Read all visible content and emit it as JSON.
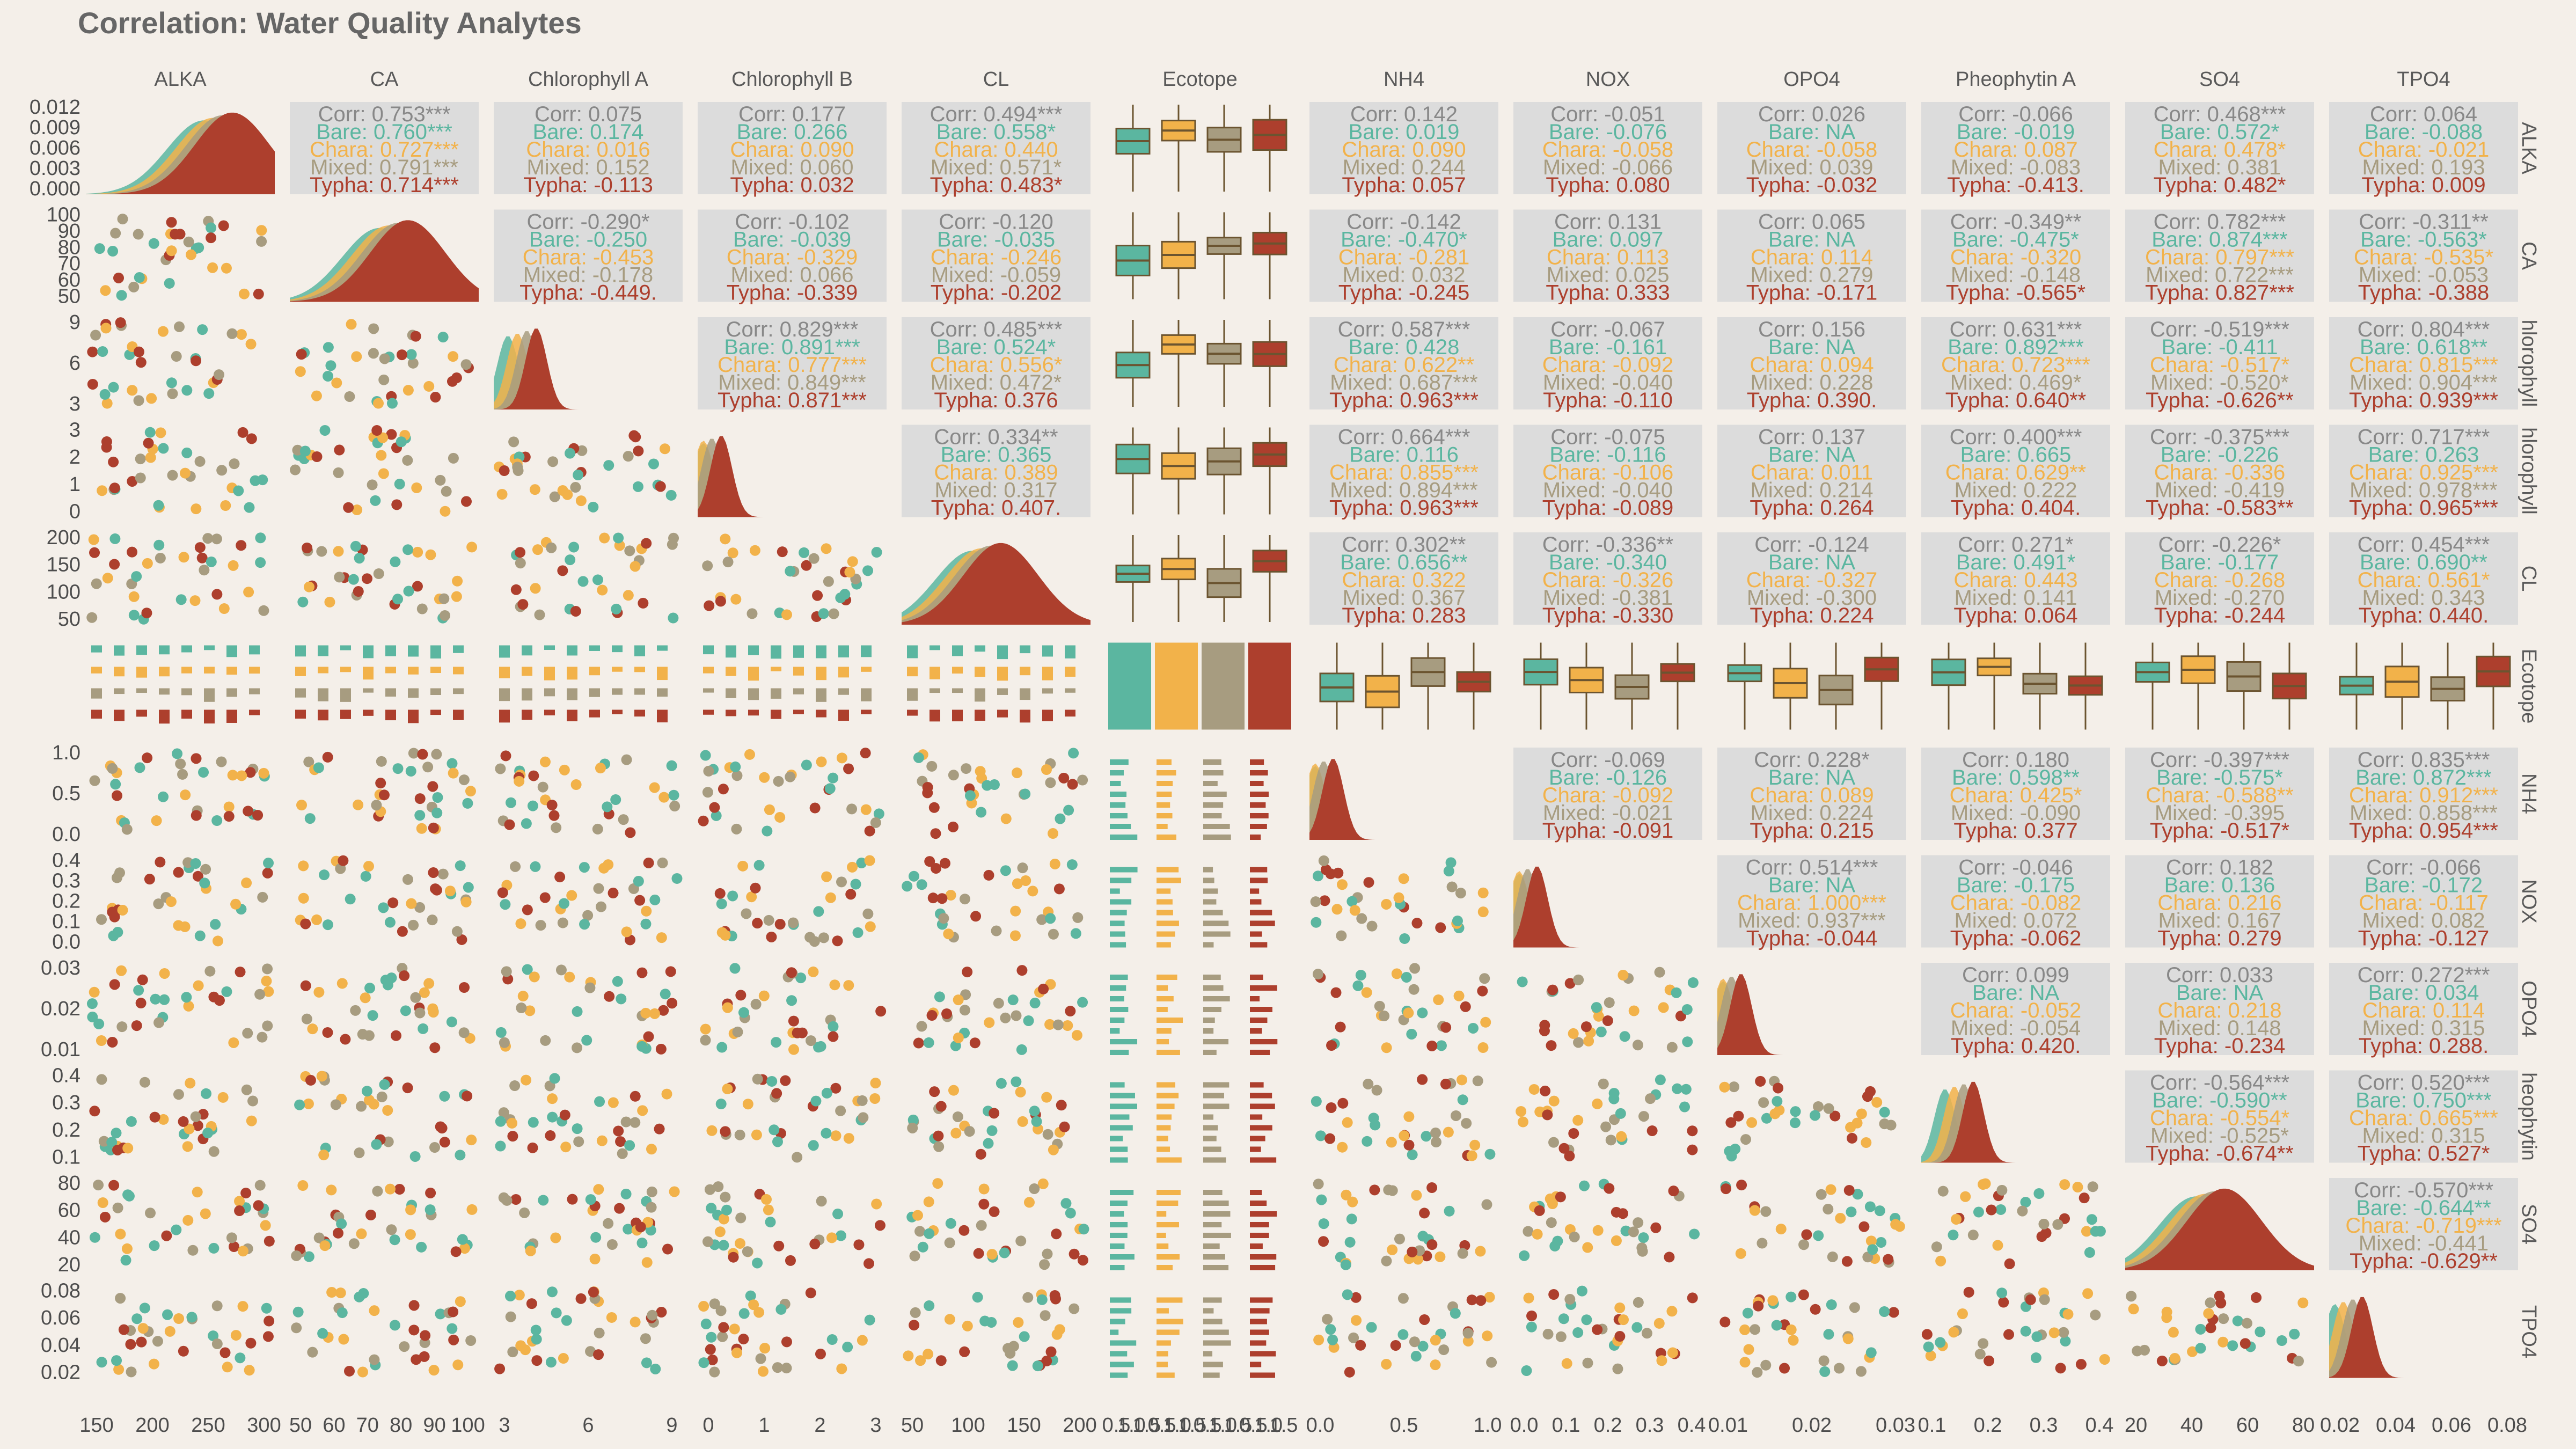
{
  "title": "Correlation: Water Quality Analytes",
  "colors": {
    "Bare": "#5bb6a0",
    "Chara": "#f2b24a",
    "Mixed": "#a79c80",
    "Typha": "#ad3f2d",
    "overall": "#888888",
    "box_line": "#6b5430"
  },
  "chart_data": {
    "type": "scatter",
    "variables": [
      "ALKA",
      "CA",
      "Chlorophyll A",
      "Chlorophyll B",
      "CL",
      "Ecotope",
      "NH4",
      "NOX",
      "OPO4",
      "Pheophytin A",
      "SO4",
      "TPO4"
    ],
    "column_strip_labels": [
      "ALKA",
      "CA",
      "Chlorophyll A",
      "Chlorophyll B",
      "CL",
      "Ecotope",
      "NH4",
      "NOX",
      "OPO4",
      "Pheophytin A",
      "SO4",
      "TPO4"
    ],
    "row_strip_labels": [
      "ALKA",
      "CA",
      "hlorophyll",
      "hlorophyll",
      "CL",
      "Ecotope",
      "NH4",
      "NOX",
      "OPO4",
      "heophytin",
      "SO4",
      "TPO4"
    ],
    "groups": [
      "Bare",
      "Chara",
      "Mixed",
      "Typha"
    ],
    "axis_ticks": {
      "x": [
        [
          "150",
          "200",
          "250",
          "300"
        ],
        [
          "50",
          "60",
          "70",
          "80",
          "90",
          "100"
        ],
        [
          "3",
          "6",
          "9"
        ],
        [
          "0",
          "1",
          "2",
          "3"
        ],
        [
          "50",
          "100",
          "150",
          "200"
        ],
        [
          "0.5",
          "1.0",
          "1.5",
          "0.5",
          "1.0",
          "1.5",
          "0.5",
          "1.0",
          "1.5",
          "0.5",
          "1.0",
          "1.5"
        ],
        [
          "0.0",
          "0.5",
          "1.0"
        ],
        [
          "0.0",
          "0.1",
          "0.2",
          "0.3",
          "0.4"
        ],
        [
          "0.01",
          "0.02",
          "0.03"
        ],
        [
          "0.1",
          "0.2",
          "0.3",
          "0.4"
        ],
        [
          "20",
          "40",
          "60",
          "80"
        ],
        [
          "0.02",
          "0.04",
          "0.06",
          "0.08"
        ]
      ],
      "y": [
        [
          "0.000",
          "0.003",
          "0.006",
          "0.009",
          "0.012"
        ],
        [
          "50",
          "60",
          "70",
          "80",
          "90",
          "100"
        ],
        [
          "3",
          "6",
          "9"
        ],
        [
          "0",
          "1",
          "2",
          "3"
        ],
        [
          "50",
          "100",
          "150",
          "200"
        ],
        [],
        [
          "0.0",
          "0.5",
          "1.0"
        ],
        [
          "0.0",
          "0.1",
          "0.2",
          "0.3",
          "0.4"
        ],
        [
          "0.01",
          "0.02",
          "0.03"
        ],
        [
          "0.1",
          "0.2",
          "0.3",
          "0.4"
        ],
        [
          "20",
          "40",
          "60",
          "80"
        ],
        [
          "0.02",
          "0.04",
          "0.06",
          "0.08"
        ]
      ]
    },
    "correlations": [
      {
        "row": 0,
        "col": 1,
        "lines": [
          "Corr: 0.753***",
          "Bare: 0.760***",
          "Chara: 0.727***",
          "Mixed: 0.791***",
          "Typha: 0.714***"
        ]
      },
      {
        "row": 0,
        "col": 2,
        "lines": [
          "Corr: 0.075",
          "Bare: 0.174",
          "Chara: 0.016",
          "Mixed: 0.152",
          "Typha: -0.113"
        ]
      },
      {
        "row": 0,
        "col": 3,
        "lines": [
          "Corr: 0.177",
          "Bare: 0.266",
          "Chara: 0.090",
          "Mixed: 0.060",
          "Typha: 0.032"
        ]
      },
      {
        "row": 0,
        "col": 4,
        "lines": [
          "Corr: 0.494***",
          "Bare: 0.558*",
          "Chara: 0.440",
          "Mixed: 0.571*",
          "Typha: 0.483*"
        ]
      },
      {
        "row": 0,
        "col": 6,
        "lines": [
          "Corr: 0.142",
          "Bare: 0.019",
          "Chara: 0.090",
          "Mixed: 0.244",
          "Typha: 0.057"
        ]
      },
      {
        "row": 0,
        "col": 7,
        "lines": [
          "Corr: -0.051",
          "Bare: -0.076",
          "Chara: -0.058",
          "Mixed: -0.066",
          "Typha: 0.080"
        ]
      },
      {
        "row": 0,
        "col": 8,
        "lines": [
          "Corr: 0.026",
          "Bare: NA",
          "Chara: -0.058",
          "Mixed: 0.039",
          "Typha: -0.032"
        ]
      },
      {
        "row": 0,
        "col": 9,
        "lines": [
          "Corr: -0.066",
          "Bare: -0.019",
          "Chara: 0.087",
          "Mixed: -0.083",
          "Typha: -0.413."
        ]
      },
      {
        "row": 0,
        "col": 10,
        "lines": [
          "Corr: 0.468***",
          "Bare: 0.572*",
          "Chara: 0.478*",
          "Mixed: 0.381",
          "Typha: 0.482*"
        ]
      },
      {
        "row": 0,
        "col": 11,
        "lines": [
          "Corr: 0.064",
          "Bare: -0.088",
          "Chara: -0.021",
          "Mixed: 0.193",
          "Typha: 0.009"
        ]
      },
      {
        "row": 1,
        "col": 2,
        "lines": [
          "Corr: -0.290*",
          "Bare: -0.250",
          "Chara: -0.453",
          "Mixed: -0.178",
          "Typha: -0.449."
        ]
      },
      {
        "row": 1,
        "col": 3,
        "lines": [
          "Corr: -0.102",
          "Bare: -0.039",
          "Chara: -0.329",
          "Mixed: 0.066",
          "Typha: -0.339"
        ]
      },
      {
        "row": 1,
        "col": 4,
        "lines": [
          "Corr: -0.120",
          "Bare: -0.035",
          "Chara: -0.246",
          "Mixed: -0.059",
          "Typha: -0.202"
        ]
      },
      {
        "row": 1,
        "col": 6,
        "lines": [
          "Corr: -0.142",
          "Bare: -0.470*",
          "Chara: -0.281",
          "Mixed: 0.032",
          "Typha: -0.245"
        ]
      },
      {
        "row": 1,
        "col": 7,
        "lines": [
          "Corr: 0.131",
          "Bare: 0.097",
          "Chara: 0.113",
          "Mixed: 0.025",
          "Typha: 0.333"
        ]
      },
      {
        "row": 1,
        "col": 8,
        "lines": [
          "Corr: 0.065",
          "Bare: NA",
          "Chara: 0.114",
          "Mixed: 0.279",
          "Typha: -0.171"
        ]
      },
      {
        "row": 1,
        "col": 9,
        "lines": [
          "Corr: -0.349**",
          "Bare: -0.475*",
          "Chara: -0.320",
          "Mixed: -0.148",
          "Typha: -0.565*"
        ]
      },
      {
        "row": 1,
        "col": 10,
        "lines": [
          "Corr: 0.782***",
          "Bare: 0.874***",
          "Chara: 0.797***",
          "Mixed: 0.722***",
          "Typha: 0.827***"
        ]
      },
      {
        "row": 1,
        "col": 11,
        "lines": [
          "Corr: -0.311**",
          "Bare: -0.563*",
          "Chara: -0.535*",
          "Mixed: -0.053",
          "Typha: -0.388"
        ]
      },
      {
        "row": 2,
        "col": 3,
        "lines": [
          "Corr: 0.829***",
          "Bare: 0.891***",
          "Chara: 0.777***",
          "Mixed: 0.849***",
          "Typha: 0.871***"
        ]
      },
      {
        "row": 2,
        "col": 4,
        "lines": [
          "Corr: 0.485***",
          "Bare: 0.524*",
          "Chara: 0.556*",
          "Mixed: 0.472*",
          "Typha: 0.376"
        ]
      },
      {
        "row": 2,
        "col": 6,
        "lines": [
          "Corr: 0.587***",
          "Bare: 0.428",
          "Chara: 0.622**",
          "Mixed: 0.687***",
          "Typha: 0.963***"
        ]
      },
      {
        "row": 2,
        "col": 7,
        "lines": [
          "Corr: -0.067",
          "Bare: -0.161",
          "Chara: -0.092",
          "Mixed: -0.040",
          "Typha: -0.110"
        ]
      },
      {
        "row": 2,
        "col": 8,
        "lines": [
          "Corr: 0.156",
          "Bare: NA",
          "Chara: 0.094",
          "Mixed: 0.228",
          "Typha: 0.390."
        ]
      },
      {
        "row": 2,
        "col": 9,
        "lines": [
          "Corr: 0.631***",
          "Bare: 0.892***",
          "Chara: 0.723***",
          "Mixed: 0.469*",
          "Typha: 0.640**"
        ]
      },
      {
        "row": 2,
        "col": 10,
        "lines": [
          "Corr: -0.519***",
          "Bare: -0.411",
          "Chara: -0.517*",
          "Mixed: -0.520*",
          "Typha: -0.626**"
        ]
      },
      {
        "row": 2,
        "col": 11,
        "lines": [
          "Corr: 0.804***",
          "Bare: 0.618**",
          "Chara: 0.815***",
          "Mixed: 0.904***",
          "Typha: 0.939***"
        ]
      },
      {
        "row": 3,
        "col": 4,
        "lines": [
          "Corr: 0.334**",
          "Bare: 0.365",
          "Chara: 0.389",
          "Mixed: 0.317",
          "Typha: 0.407."
        ]
      },
      {
        "row": 3,
        "col": 6,
        "lines": [
          "Corr: 0.664***",
          "Bare: 0.116",
          "Chara: 0.855***",
          "Mixed: 0.894***",
          "Typha: 0.963***"
        ]
      },
      {
        "row": 3,
        "col": 7,
        "lines": [
          "Corr: -0.075",
          "Bare: -0.116",
          "Chara: -0.106",
          "Mixed: -0.040",
          "Typha: -0.089"
        ]
      },
      {
        "row": 3,
        "col": 8,
        "lines": [
          "Corr: 0.137",
          "Bare: NA",
          "Chara: 0.011",
          "Mixed: 0.214",
          "Typha: 0.264"
        ]
      },
      {
        "row": 3,
        "col": 9,
        "lines": [
          "Corr: 0.400***",
          "Bare: 0.665",
          "Chara: 0.629**",
          "Mixed: 0.222",
          "Typha: 0.404."
        ]
      },
      {
        "row": 3,
        "col": 10,
        "lines": [
          "Corr: -0.375***",
          "Bare: -0.226",
          "Chara: -0.336",
          "Mixed: -0.419",
          "Typha: -0.583**"
        ]
      },
      {
        "row": 3,
        "col": 11,
        "lines": [
          "Corr: 0.717***",
          "Bare: 0.263",
          "Chara: 0.925***",
          "Mixed: 0.978***",
          "Typha: 0.965***"
        ]
      },
      {
        "row": 4,
        "col": 6,
        "lines": [
          "Corr: 0.302**",
          "Bare: 0.656**",
          "Chara: 0.322",
          "Mixed: 0.367",
          "Typha: 0.283"
        ]
      },
      {
        "row": 4,
        "col": 7,
        "lines": [
          "Corr: -0.336**",
          "Bare: -0.340",
          "Chara: -0.326",
          "Mixed: -0.381",
          "Typha: -0.330"
        ]
      },
      {
        "row": 4,
        "col": 8,
        "lines": [
          "Corr: -0.124",
          "Bare: NA",
          "Chara: -0.327",
          "Mixed: -0.300",
          "Typha: 0.224"
        ]
      },
      {
        "row": 4,
        "col": 9,
        "lines": [
          "Corr: 0.271*",
          "Bare: 0.491*",
          "Chara: 0.443",
          "Mixed: 0.141",
          "Typha: 0.064"
        ]
      },
      {
        "row": 4,
        "col": 10,
        "lines": [
          "Corr: -0.226*",
          "Bare: -0.177",
          "Chara: -0.268",
          "Mixed: -0.270",
          "Typha: -0.244"
        ]
      },
      {
        "row": 4,
        "col": 11,
        "lines": [
          "Corr: 0.454***",
          "Bare: 0.690**",
          "Chara: 0.561*",
          "Mixed: 0.343",
          "Typha: 0.440."
        ]
      },
      {
        "row": 6,
        "col": 7,
        "lines": [
          "Corr: -0.069",
          "Bare: -0.126",
          "Chara: -0.092",
          "Mixed: -0.021",
          "Typha: -0.091"
        ]
      },
      {
        "row": 6,
        "col": 8,
        "lines": [
          "Corr: 0.228*",
          "Bare: NA",
          "Chara: 0.089",
          "Mixed: 0.224",
          "Typha: 0.215"
        ]
      },
      {
        "row": 6,
        "col": 9,
        "lines": [
          "Corr: 0.180",
          "Bare: 0.598**",
          "Chara: 0.425*",
          "Mixed: -0.090",
          "Typha: 0.377"
        ]
      },
      {
        "row": 6,
        "col": 10,
        "lines": [
          "Corr: -0.397***",
          "Bare: -0.575*",
          "Chara: -0.588**",
          "Mixed: -0.395",
          "Typha: -0.517*"
        ]
      },
      {
        "row": 6,
        "col": 11,
        "lines": [
          "Corr: 0.835***",
          "Bare: 0.872***",
          "Chara: 0.912***",
          "Mixed: 0.858***",
          "Typha: 0.954***"
        ]
      },
      {
        "row": 7,
        "col": 8,
        "lines": [
          "Corr: 0.514***",
          "Bare: NA",
          "Chara: 1.000***",
          "Mixed: 0.937***",
          "Typha: -0.044"
        ]
      },
      {
        "row": 7,
        "col": 9,
        "lines": [
          "Corr: -0.046",
          "Bare: -0.175",
          "Chara: -0.082",
          "Mixed: 0.072",
          "Typha: -0.062"
        ]
      },
      {
        "row": 7,
        "col": 10,
        "lines": [
          "Corr: 0.182",
          "Bare: 0.136",
          "Chara: 0.216",
          "Mixed: 0.167",
          "Typha: 0.279"
        ]
      },
      {
        "row": 7,
        "col": 11,
        "lines": [
          "Corr: -0.066",
          "Bare: -0.172",
          "Chara: -0.117",
          "Mixed: 0.082",
          "Typha: -0.127"
        ]
      },
      {
        "row": 8,
        "col": 9,
        "lines": [
          "Corr: 0.099",
          "Bare: NA",
          "Chara: -0.052",
          "Mixed: -0.054",
          "Typha: 0.420."
        ]
      },
      {
        "row": 8,
        "col": 10,
        "lines": [
          "Corr: 0.033",
          "Bare: NA",
          "Chara: 0.218",
          "Mixed: 0.148",
          "Typha: -0.234"
        ]
      },
      {
        "row": 8,
        "col": 11,
        "lines": [
          "Corr: 0.272***",
          "Bare: 0.034",
          "Chara: 0.114",
          "Mixed: 0.315",
          "Typha: 0.288."
        ]
      },
      {
        "row": 9,
        "col": 10,
        "lines": [
          "Corr: -0.564***",
          "Bare: -0.590**",
          "Chara: -0.554*",
          "Mixed: -0.525*",
          "Typha: -0.674**"
        ]
      },
      {
        "row": 9,
        "col": 11,
        "lines": [
          "Corr: 0.520***",
          "Bare: 0.750***",
          "Chara: 0.665***",
          "Mixed: 0.315",
          "Typha: 0.527*"
        ]
      },
      {
        "row": 10,
        "col": 11,
        "lines": [
          "Corr: -0.570***",
          "Bare: -0.644**",
          "Chara: -0.719***",
          "Mixed: -0.441",
          "Typha: -0.629**"
        ]
      }
    ]
  }
}
